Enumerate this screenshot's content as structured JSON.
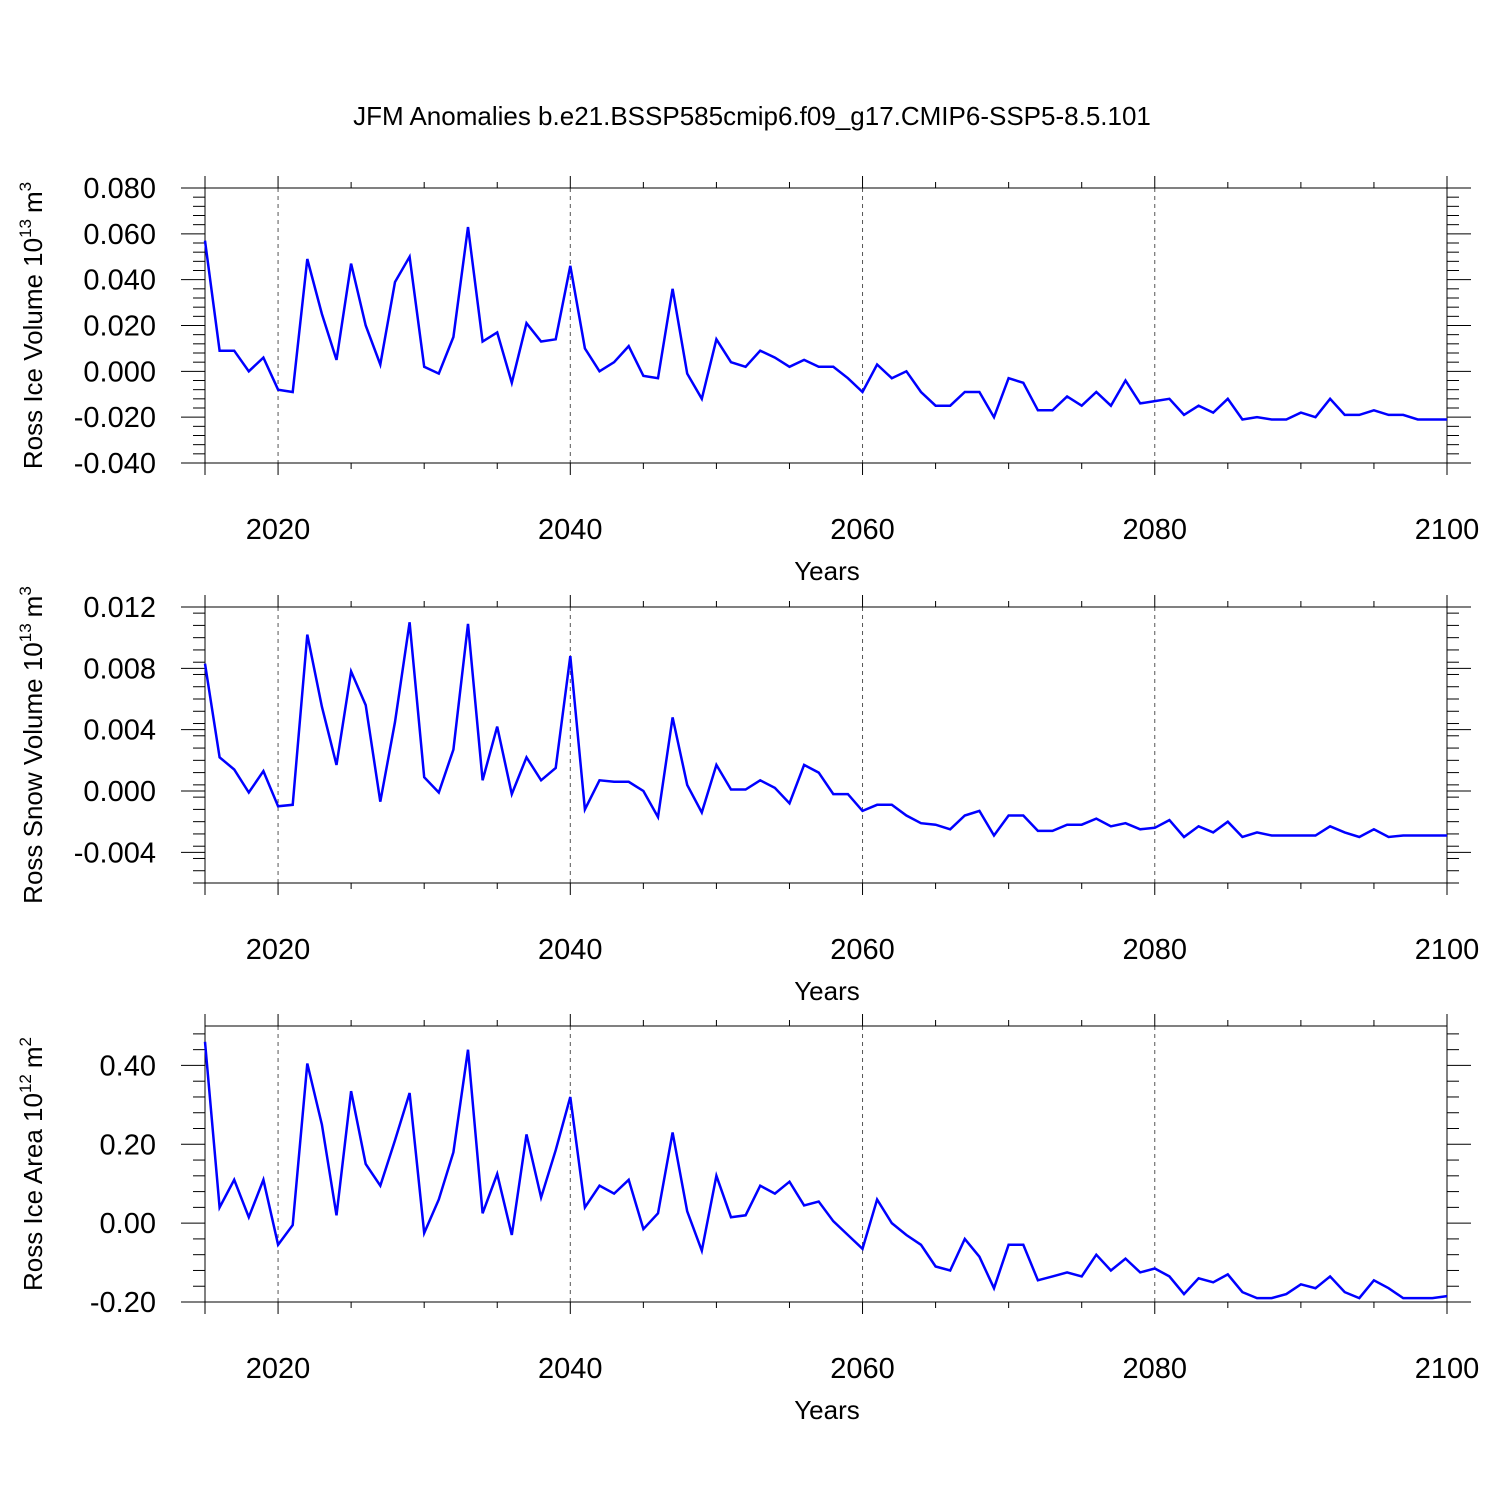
{
  "title": "JFM Anomalies b.e21.BSSP585cmip6.f09_g17.CMIP6-SSP5-8.5.101",
  "colors": {
    "line": "#0000ff",
    "axis": "#000000",
    "grid": "#555555"
  },
  "chart_data": [
    {
      "type": "line",
      "title": "JFM Anomalies b.e21.BSSP585cmip6.f09_g17.CMIP6-SSP5-8.5.101",
      "ylabel": {
        "text": "Ross Ice Volume 10",
        "sup": "13",
        "unit": "m",
        "unit_sup": "3"
      },
      "xlabel": "Years",
      "xlim": [
        2015,
        2100
      ],
      "ylim": [
        -0.04,
        0.08
      ],
      "ymajor": [
        "0.080",
        "0.060",
        "0.040",
        "0.020",
        "0.000",
        "-0.020",
        "-0.040"
      ],
      "ytick_values": [
        0.08,
        0.06,
        0.04,
        0.02,
        0.0,
        -0.02,
        -0.04
      ],
      "xticks": [
        "2020",
        "2040",
        "2060",
        "2080",
        "2100"
      ],
      "xtick_values": [
        2020,
        2040,
        2060,
        2080,
        2100
      ],
      "grid_x": [
        2020,
        2040,
        2060,
        2080
      ],
      "x": [
        2015,
        2016,
        2017,
        2018,
        2019,
        2020,
        2021,
        2022,
        2023,
        2024,
        2025,
        2026,
        2027,
        2028,
        2029,
        2030,
        2031,
        2032,
        2033,
        2034,
        2035,
        2036,
        2037,
        2038,
        2039,
        2040,
        2041,
        2042,
        2043,
        2044,
        2045,
        2046,
        2047,
        2048,
        2049,
        2050,
        2051,
        2052,
        2053,
        2054,
        2055,
        2056,
        2057,
        2058,
        2059,
        2060,
        2061,
        2062,
        2063,
        2064,
        2065,
        2066,
        2067,
        2068,
        2069,
        2070,
        2071,
        2072,
        2073,
        2074,
        2075,
        2076,
        2077,
        2078,
        2079,
        2080,
        2081,
        2082,
        2083,
        2084,
        2085,
        2086,
        2087,
        2088,
        2089,
        2090,
        2091,
        2092,
        2093,
        2094,
        2095,
        2096,
        2097,
        2098,
        2099,
        2100
      ],
      "values": [
        0.057,
        0.009,
        0.009,
        0.0,
        0.006,
        -0.008,
        -0.009,
        0.049,
        0.025,
        0.005,
        0.047,
        0.02,
        0.003,
        0.039,
        0.05,
        0.002,
        -0.001,
        0.015,
        0.063,
        0.013,
        0.017,
        -0.005,
        0.021,
        0.013,
        0.014,
        0.046,
        0.01,
        0.0,
        0.004,
        0.011,
        -0.002,
        -0.003,
        0.036,
        -0.001,
        -0.012,
        0.014,
        0.004,
        0.002,
        0.009,
        0.006,
        0.002,
        0.005,
        0.002,
        0.002,
        -0.003,
        -0.009,
        0.003,
        -0.003,
        0.0,
        -0.009,
        -0.015,
        -0.015,
        -0.009,
        -0.009,
        -0.02,
        -0.003,
        -0.005,
        -0.017,
        -0.017,
        -0.011,
        -0.015,
        -0.009,
        -0.015,
        -0.004,
        -0.014,
        -0.013,
        -0.012,
        -0.019,
        -0.015,
        -0.018,
        -0.012,
        -0.021,
        -0.02,
        -0.021,
        -0.021,
        -0.018,
        -0.02,
        -0.012,
        -0.019,
        -0.019,
        -0.017,
        -0.019,
        -0.019,
        -0.021,
        -0.021,
        -0.021
      ]
    },
    {
      "type": "line",
      "ylabel": {
        "text": "Ross Snow Volume 10",
        "sup": "13",
        "unit": "m",
        "unit_sup": "3"
      },
      "xlabel": "Years",
      "xlim": [
        2015,
        2100
      ],
      "ylim": [
        -0.006,
        0.012
      ],
      "ymajor": [
        "0.012",
        "0.008",
        "0.004",
        "0.000",
        "-0.004"
      ],
      "ytick_values": [
        0.012,
        0.008,
        0.004,
        0.0,
        -0.004
      ],
      "xticks": [
        "2020",
        "2040",
        "2060",
        "2080",
        "2100"
      ],
      "xtick_values": [
        2020,
        2040,
        2060,
        2080,
        2100
      ],
      "grid_x": [
        2020,
        2040,
        2060,
        2080
      ],
      "x": [
        2015,
        2016,
        2017,
        2018,
        2019,
        2020,
        2021,
        2022,
        2023,
        2024,
        2025,
        2026,
        2027,
        2028,
        2029,
        2030,
        2031,
        2032,
        2033,
        2034,
        2035,
        2036,
        2037,
        2038,
        2039,
        2040,
        2041,
        2042,
        2043,
        2044,
        2045,
        2046,
        2047,
        2048,
        2049,
        2050,
        2051,
        2052,
        2053,
        2054,
        2055,
        2056,
        2057,
        2058,
        2059,
        2060,
        2061,
        2062,
        2063,
        2064,
        2065,
        2066,
        2067,
        2068,
        2069,
        2070,
        2071,
        2072,
        2073,
        2074,
        2075,
        2076,
        2077,
        2078,
        2079,
        2080,
        2081,
        2082,
        2083,
        2084,
        2085,
        2086,
        2087,
        2088,
        2089,
        2090,
        2091,
        2092,
        2093,
        2094,
        2095,
        2096,
        2097,
        2098,
        2099,
        2100
      ],
      "values": [
        0.0083,
        0.0022,
        0.0014,
        -0.0001,
        0.0013,
        -0.001,
        -0.0009,
        0.0102,
        0.0055,
        0.0017,
        0.0078,
        0.0056,
        -0.0007,
        0.0045,
        0.011,
        0.0009,
        -0.0001,
        0.0027,
        0.0109,
        0.0007,
        0.0042,
        -0.0002,
        0.0022,
        0.0007,
        0.0015,
        0.0088,
        -0.0012,
        0.0007,
        0.0006,
        0.0006,
        0.0,
        -0.0017,
        0.0048,
        0.0004,
        -0.0014,
        0.0017,
        0.0001,
        0.0001,
        0.0007,
        0.0002,
        -0.0008,
        0.0017,
        0.0012,
        -0.0002,
        -0.0002,
        -0.0013,
        -0.0009,
        -0.0009,
        -0.0016,
        -0.0021,
        -0.0022,
        -0.0025,
        -0.0016,
        -0.0013,
        -0.0029,
        -0.0016,
        -0.0016,
        -0.0026,
        -0.0026,
        -0.0022,
        -0.0022,
        -0.0018,
        -0.0023,
        -0.0021,
        -0.0025,
        -0.0024,
        -0.0019,
        -0.003,
        -0.0023,
        -0.0027,
        -0.002,
        -0.003,
        -0.0027,
        -0.0029,
        -0.0029,
        -0.0029,
        -0.0029,
        -0.0023,
        -0.0027,
        -0.003,
        -0.0025,
        -0.003,
        -0.0029,
        -0.0029,
        -0.0029,
        -0.0029
      ]
    },
    {
      "type": "line",
      "ylabel": {
        "text": "Ross Ice Area 10",
        "sup": "12",
        "unit": "m",
        "unit_sup": "2"
      },
      "xlabel": "Years",
      "xlim": [
        2015,
        2100
      ],
      "ylim": [
        -0.2,
        0.5
      ],
      "ymajor": [
        "0.40",
        "0.20",
        "0.00",
        "-0.20"
      ],
      "ytick_values": [
        0.4,
        0.2,
        0.0,
        -0.2
      ],
      "xticks": [
        "2020",
        "2040",
        "2060",
        "2080",
        "2100"
      ],
      "xtick_values": [
        2020,
        2040,
        2060,
        2080,
        2100
      ],
      "grid_x": [
        2020,
        2040,
        2060,
        2080
      ],
      "x": [
        2015,
        2016,
        2017,
        2018,
        2019,
        2020,
        2021,
        2022,
        2023,
        2024,
        2025,
        2026,
        2027,
        2028,
        2029,
        2030,
        2031,
        2032,
        2033,
        2034,
        2035,
        2036,
        2037,
        2038,
        2039,
        2040,
        2041,
        2042,
        2043,
        2044,
        2045,
        2046,
        2047,
        2048,
        2049,
        2050,
        2051,
        2052,
        2053,
        2054,
        2055,
        2056,
        2057,
        2058,
        2059,
        2060,
        2061,
        2062,
        2063,
        2064,
        2065,
        2066,
        2067,
        2068,
        2069,
        2070,
        2071,
        2072,
        2073,
        2074,
        2075,
        2076,
        2077,
        2078,
        2079,
        2080,
        2081,
        2082,
        2083,
        2084,
        2085,
        2086,
        2087,
        2088,
        2089,
        2090,
        2091,
        2092,
        2093,
        2094,
        2095,
        2096,
        2097,
        2098,
        2099,
        2100
      ],
      "values": [
        0.46,
        0.04,
        0.11,
        0.015,
        0.11,
        -0.055,
        -0.005,
        0.405,
        0.25,
        0.02,
        0.335,
        0.15,
        0.095,
        0.21,
        0.33,
        -0.025,
        0.06,
        0.18,
        0.44,
        0.025,
        0.125,
        -0.03,
        0.225,
        0.065,
        0.185,
        0.32,
        0.04,
        0.095,
        0.075,
        0.11,
        -0.015,
        0.025,
        0.23,
        0.03,
        -0.07,
        0.12,
        0.015,
        0.02,
        0.095,
        0.075,
        0.105,
        0.045,
        0.055,
        0.005,
        -0.03,
        -0.065,
        0.06,
        0.0,
        -0.03,
        -0.055,
        -0.11,
        -0.12,
        -0.04,
        -0.085,
        -0.165,
        -0.055,
        -0.055,
        -0.145,
        -0.135,
        -0.125,
        -0.135,
        -0.08,
        -0.12,
        -0.09,
        -0.125,
        -0.115,
        -0.135,
        -0.18,
        -0.14,
        -0.15,
        -0.13,
        -0.175,
        -0.19,
        -0.19,
        -0.18,
        -0.155,
        -0.165,
        -0.135,
        -0.175,
        -0.19,
        -0.145,
        -0.165,
        -0.19,
        -0.19,
        -0.19,
        -0.185
      ]
    }
  ]
}
